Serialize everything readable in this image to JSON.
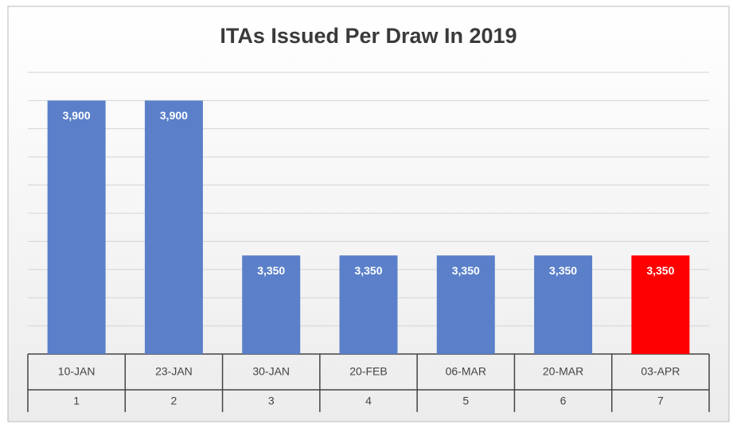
{
  "chart_data": {
    "type": "bar",
    "title": "ITAs Issued Per Draw In 2019",
    "categories": [
      "10-JAN",
      "23-JAN",
      "30-JAN",
      "20-FEB",
      "06-MAR",
      "20-MAR",
      "03-APR"
    ],
    "subcategories": [
      "1",
      "2",
      "3",
      "4",
      "5",
      "6",
      "7"
    ],
    "values": [
      3900,
      3900,
      3350,
      3350,
      3350,
      3350,
      3350
    ],
    "value_labels": [
      "3,900",
      "3,900",
      "3,350",
      "3,350",
      "3,350",
      "3,350",
      "3,350"
    ],
    "colors": [
      "#5b80c9",
      "#5b80c9",
      "#5b80c9",
      "#5b80c9",
      "#5b80c9",
      "#5b80c9",
      "#ff0000"
    ],
    "ylim": [
      3000,
      4000
    ],
    "yticks": [
      3000,
      3100,
      3200,
      3300,
      3400,
      3500,
      3600,
      3700,
      3800,
      3900,
      4000
    ],
    "grid": true
  }
}
